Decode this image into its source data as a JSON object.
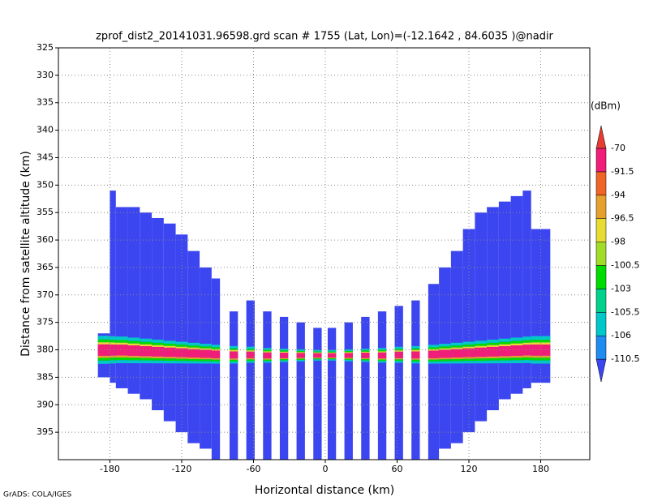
{
  "chart_data": {
    "type": "profile",
    "title": "zprof_dist2_20141031.96598.grd  scan # 1755  (Lat, Lon)=(-12.1642 , 84.6035 )@nadir",
    "xlabel": "Horizontal distance (km)",
    "ylabel": "Distance from satellite altitude (km)",
    "footer": "GrADS: COLA/IGES",
    "xlim": [
      -223,
      221
    ],
    "xticks": [
      -180,
      -120,
      -60,
      0,
      60,
      120,
      180
    ],
    "ylim": [
      400,
      325
    ],
    "yticks": [
      325,
      330,
      335,
      340,
      345,
      350,
      355,
      360,
      365,
      370,
      375,
      380,
      385,
      390,
      395
    ],
    "grid": true,
    "colorbar": {
      "label": "(dBm)",
      "levels": [
        -110.5,
        -106,
        -105.5,
        -103,
        -100.5,
        -98,
        -96.5,
        -94,
        -91.5,
        -70
      ],
      "colors": [
        "#3c46f0",
        "#1e8cf0",
        "#00c8c8",
        "#00d28c",
        "#00dc00",
        "#a0dc28",
        "#e6dc32",
        "#e6a02d",
        "#f06428",
        "#f01e78",
        "#e63c32"
      ]
    },
    "columns": [
      {
        "x0": -190,
        "x1": -180,
        "top": 377,
        "bottom": 385,
        "band": 380
      },
      {
        "x0": -180,
        "x1": -175,
        "top": 351,
        "bottom": 386,
        "band": 380
      },
      {
        "x0": -175,
        "x1": -165,
        "top": 354,
        "bottom": 387,
        "band": 380
      },
      {
        "x0": -165,
        "x1": -155,
        "top": 354,
        "bottom": 388,
        "band": 380.1
      },
      {
        "x0": -155,
        "x1": -145,
        "top": 355,
        "bottom": 389,
        "band": 380.2
      },
      {
        "x0": -145,
        "x1": -135,
        "top": 356,
        "bottom": 391,
        "band": 380.3
      },
      {
        "x0": -135,
        "x1": -125,
        "top": 357,
        "bottom": 393,
        "band": 380.4
      },
      {
        "x0": -125,
        "x1": -115,
        "top": 359,
        "bottom": 395,
        "band": 380.5
      },
      {
        "x0": -115,
        "x1": -105,
        "top": 362,
        "bottom": 397,
        "band": 380.6
      },
      {
        "x0": -105,
        "x1": -95,
        "top": 365,
        "bottom": 398,
        "band": 380.7
      },
      {
        "x0": -95,
        "x1": -88,
        "top": 367,
        "bottom": 400,
        "band": 380.8
      },
      {
        "x0": -80,
        "x1": -73,
        "top": 373,
        "bottom": 400,
        "band": 380.9
      },
      {
        "x0": -66,
        "x1": -59,
        "top": 371,
        "bottom": 400,
        "band": 380.9
      },
      {
        "x0": -52,
        "x1": -45,
        "top": 373,
        "bottom": 400,
        "band": 381
      },
      {
        "x0": -38,
        "x1": -31,
        "top": 374,
        "bottom": 400,
        "band": 381
      },
      {
        "x0": -24,
        "x1": -17,
        "top": 375,
        "bottom": 400,
        "band": 381
      },
      {
        "x0": -10,
        "x1": -3,
        "top": 376,
        "bottom": 400,
        "band": 381
      },
      {
        "x0": 2,
        "x1": 9,
        "top": 376,
        "bottom": 400,
        "band": 381
      },
      {
        "x0": 16,
        "x1": 23,
        "top": 375,
        "bottom": 400,
        "band": 381
      },
      {
        "x0": 30,
        "x1": 37,
        "top": 374,
        "bottom": 400,
        "band": 381
      },
      {
        "x0": 44,
        "x1": 51,
        "top": 373,
        "bottom": 400,
        "band": 381
      },
      {
        "x0": 58,
        "x1": 65,
        "top": 372,
        "bottom": 400,
        "band": 380.9
      },
      {
        "x0": 72,
        "x1": 79,
        "top": 371,
        "bottom": 400,
        "band": 380.9
      },
      {
        "x0": 86,
        "x1": 95,
        "top": 368,
        "bottom": 400,
        "band": 380.8
      },
      {
        "x0": 95,
        "x1": 105,
        "top": 365,
        "bottom": 398,
        "band": 380.7
      },
      {
        "x0": 105,
        "x1": 115,
        "top": 362,
        "bottom": 397,
        "band": 380.6
      },
      {
        "x0": 115,
        "x1": 125,
        "top": 358,
        "bottom": 395,
        "band": 380.5
      },
      {
        "x0": 125,
        "x1": 135,
        "top": 355,
        "bottom": 393,
        "band": 380.4
      },
      {
        "x0": 135,
        "x1": 145,
        "top": 354,
        "bottom": 391,
        "band": 380.3
      },
      {
        "x0": 145,
        "x1": 155,
        "top": 353,
        "bottom": 389,
        "band": 380.2
      },
      {
        "x0": 155,
        "x1": 165,
        "top": 352,
        "bottom": 388,
        "band": 380.1
      },
      {
        "x0": 165,
        "x1": 172,
        "top": 351,
        "bottom": 387,
        "band": 380
      },
      {
        "x0": 172,
        "x1": 188,
        "top": 358,
        "bottom": 386,
        "band": 380
      }
    ]
  }
}
